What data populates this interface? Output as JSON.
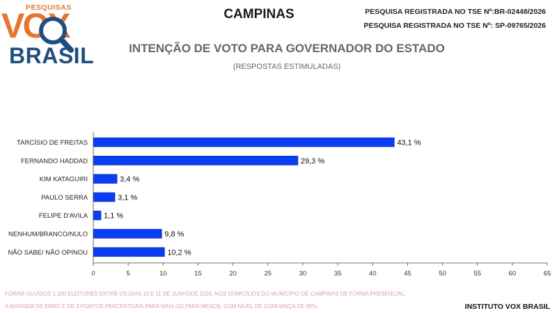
{
  "header": {
    "logo_small": "PESQUISAS",
    "logo_main": "VOX",
    "logo_sub": "BRASIL",
    "city": "CAMPINAS",
    "registration_1": "PESQUISA REGISTRADA NO TSE Nº:BR-02448/2026",
    "registration_2": "PESQUISA REGISTRADA NO TSE Nº: SP-09765/2026",
    "title": "INTENÇÃO DE VOTO PARA GOVERNADOR DO ESTADO",
    "subtitle": "(RESPOSTAS ESTIMULADAS)"
  },
  "chart_data": {
    "type": "bar",
    "orientation": "horizontal",
    "categories": [
      "TARCÍSIO DE FREITAS",
      "FERNANDO HADDAD",
      "KIM KATAGUIRI",
      "PAULO SERRA",
      "FELIPE D'AVILA",
      "NENHUM/BRANCO/NULO",
      "NÃO SABE/ NÃO OPINOU"
    ],
    "values": [
      43.1,
      29.3,
      3.4,
      3.1,
      1.1,
      9.8,
      10.2
    ],
    "data_labels": [
      "43,1 %",
      "29,3 %",
      "3,4 %",
      "3,1 %",
      "1,1 %",
      "9,8 %",
      "10,2 %"
    ],
    "xlim": [
      0,
      65
    ],
    "xticks": [
      0,
      5,
      10,
      15,
      20,
      25,
      30,
      35,
      40,
      45,
      50,
      55,
      60,
      65
    ],
    "grid": false,
    "bar_color": "#0a3ef5"
  },
  "footer": {
    "note_1": "FORAM OUVIDOS 1.100 ELEITORES ENTRE OS DIAS 10 E 11 DE JUNHODE 2026, NOS DOMICÍLIOS DO MUNICÍPIO DE CAMPINAS DE FORMA PRESENCIAL.",
    "note_2": "A MARGEM DE ERRO É DE 3 PONTOS PERCENTUAIS PARA MAIS OU PARA MENOS, COM NÍVEL DE CONFIANÇA DE 95%.",
    "brand": "INSTITUTO VOX BRASIL"
  },
  "colors": {
    "logo_orange": "#e8752f",
    "logo_blue": "#1f4f80",
    "note_pink": "#d9a0a8"
  }
}
